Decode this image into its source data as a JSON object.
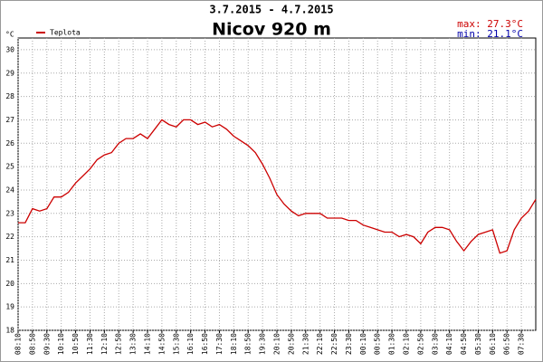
{
  "chart_data": {
    "type": "line",
    "title": "Nicov 920 m",
    "subtitle": "3.7.2015 - 4.7.2015",
    "annotations": [
      "max: 27.3°C",
      "min: 21.1°C"
    ],
    "y_label": "°C",
    "categories": [
      "08:10",
      null,
      "08:50",
      null,
      "09:30",
      null,
      "10:10",
      null,
      "10:50",
      null,
      "11:30",
      null,
      "12:10",
      null,
      "12:50",
      null,
      "13:30",
      null,
      "14:10",
      null,
      "14:50",
      null,
      "15:30",
      null,
      "16:10",
      null,
      "16:50",
      null,
      "17:30",
      null,
      "18:10",
      null,
      "18:50",
      null,
      "19:30",
      null,
      "20:10",
      null,
      "20:50",
      null,
      "21:30",
      null,
      "22:10",
      null,
      "22:50",
      null,
      "23:30",
      null,
      "00:10",
      null,
      "00:50",
      null,
      "01:30",
      null,
      "02:10",
      null,
      "02:50",
      null,
      "03:30",
      null,
      "04:10",
      null,
      "04:50",
      null,
      "05:30",
      null,
      "06:10",
      null,
      "06:50",
      null,
      "07:30",
      null,
      null
    ],
    "series": [
      {
        "name": "Teplota",
        "color": "#cc0000",
        "values": [
          22.6,
          22.6,
          23.2,
          23.1,
          23.2,
          23.7,
          23.7,
          23.9,
          24.3,
          24.6,
          24.9,
          25.3,
          25.5,
          25.6,
          26.0,
          26.2,
          26.2,
          26.4,
          26.2,
          26.6,
          27.0,
          26.8,
          26.7,
          27.0,
          27.0,
          26.8,
          26.9,
          26.7,
          26.8,
          26.6,
          26.3,
          26.1,
          25.9,
          25.6,
          25.1,
          24.5,
          23.8,
          23.4,
          23.1,
          22.9,
          23.0,
          23.0,
          23.0,
          22.8,
          22.8,
          22.8,
          22.7,
          22.7,
          22.5,
          22.4,
          22.3,
          22.2,
          22.2,
          22.0,
          22.1,
          22.0,
          21.7,
          22.2,
          22.4,
          22.4,
          22.3,
          21.8,
          21.4,
          21.8,
          22.1,
          22.2,
          22.3,
          21.3,
          21.4,
          22.3,
          22.8,
          23.1,
          23.6
        ]
      }
    ],
    "ylim": [
      18,
      30.5
    ],
    "yticks": [
      18,
      19,
      20,
      21,
      22,
      23,
      24,
      25,
      26,
      27,
      28,
      29,
      30
    ],
    "grid": true
  }
}
